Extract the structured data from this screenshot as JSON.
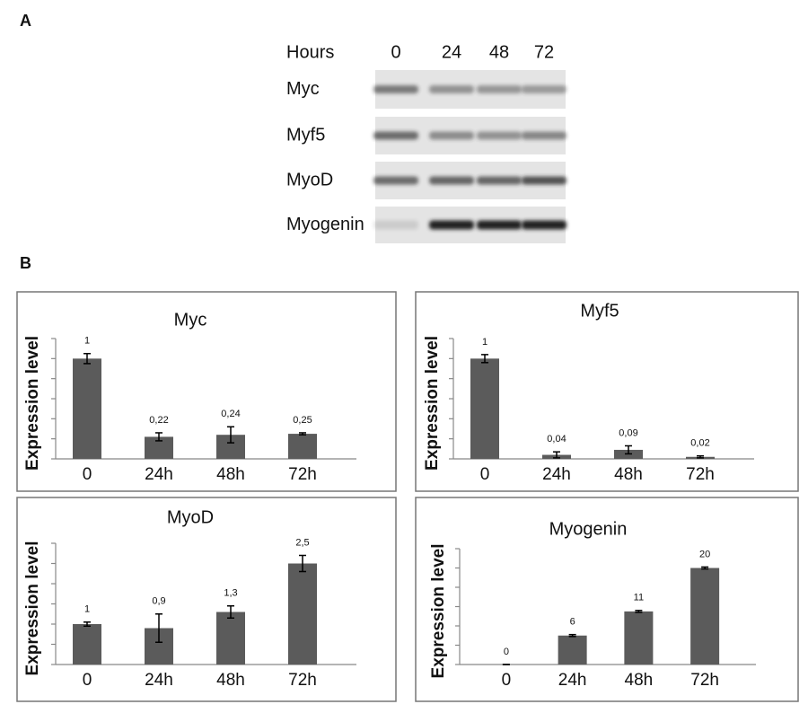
{
  "panel_a": {
    "label": "A",
    "header": "Hours",
    "lanes": [
      "0",
      "24",
      "48",
      "72"
    ],
    "rows": [
      "Myc",
      "Myf5",
      "MyoD",
      "Myogenin"
    ]
  },
  "panel_b": {
    "label": "B"
  },
  "chart_data": [
    {
      "type": "bar",
      "title": "Myc",
      "y_label": "Expression level",
      "categories": [
        "0",
        "24h",
        "48h",
        "72h"
      ],
      "values": [
        1,
        0.22,
        0.24,
        0.25
      ],
      "value_labels": [
        "1",
        "0,22",
        "0,24",
        "0,25"
      ],
      "errors": [
        0.05,
        0.04,
        0.08,
        0.01
      ],
      "color": "#5b5b5b",
      "ylim": [
        0,
        1.2
      ],
      "yticks": [
        0,
        0.2,
        0.4,
        0.6,
        0.8,
        1,
        1.2
      ]
    },
    {
      "type": "bar",
      "title": "Myf5",
      "y_label": "Expression level",
      "categories": [
        "0",
        "24h",
        "48h",
        "72h"
      ],
      "values": [
        1,
        0.04,
        0.09,
        0.02
      ],
      "value_labels": [
        "1",
        "0,04",
        "0,09",
        "0,02"
      ],
      "errors": [
        0.04,
        0.03,
        0.04,
        0.01
      ],
      "color": "#5b5b5b",
      "ylim": [
        0,
        1.2
      ],
      "yticks": [
        0,
        0.2,
        0.4,
        0.6,
        0.8,
        1,
        1.2
      ]
    },
    {
      "type": "bar",
      "title": "MyoD",
      "y_label": "Expression level",
      "categories": [
        "0",
        "24h",
        "48h",
        "72h"
      ],
      "values": [
        1,
        0.9,
        1.3,
        2.5
      ],
      "value_labels": [
        "1",
        "0,9",
        "1,3",
        "2,5"
      ],
      "errors": [
        0.05,
        0.35,
        0.15,
        0.2
      ],
      "color": "#5b5b5b",
      "ylim": [
        0,
        3
      ],
      "yticks": [
        0,
        0.5,
        1,
        1.5,
        2,
        2.5,
        3
      ]
    },
    {
      "type": "bar",
      "title": "Myogenin",
      "y_label": "Expression level",
      "categories": [
        "0",
        "24h",
        "48h",
        "72h"
      ],
      "values": [
        0,
        6,
        11,
        20
      ],
      "value_labels": [
        "0",
        "6",
        "11",
        "20"
      ],
      "errors": [
        0,
        0.2,
        0.2,
        0.2
      ],
      "color": "#5b5b5b",
      "ylim": [
        0,
        24
      ],
      "yticks": [
        0,
        4,
        8,
        12,
        16,
        20,
        24
      ]
    }
  ]
}
